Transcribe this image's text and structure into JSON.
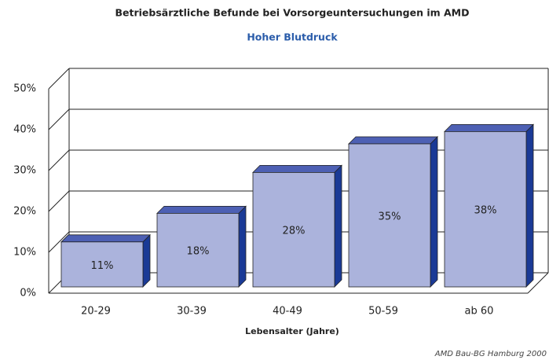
{
  "chart_data": {
    "type": "bar3d",
    "title": "Betriebsärztliche Befunde bei Vorsorgeuntersuchungen im AMD",
    "subtitle": "Hoher Blutdruck",
    "x_label": "Lebensalter (Jahre)",
    "source": "AMD Bau-BG Hamburg 2000",
    "categories": [
      "20-29",
      "30-39",
      "40-49",
      "50-59",
      "ab 60"
    ],
    "values": [
      11,
      18,
      28,
      35,
      38
    ],
    "value_labels": [
      "11%",
      "18%",
      "28%",
      "35%",
      "38%"
    ],
    "color": "#abb3dc",
    "top_color": "#4d60b4",
    "side_color": "#1a3a96",
    "ylim": [
      0,
      50
    ],
    "yticks": [
      {
        "value": 0,
        "label": "0%"
      },
      {
        "value": 10,
        "label": "10%"
      },
      {
        "value": 20,
        "label": "20%"
      },
      {
        "value": 30,
        "label": "30%"
      },
      {
        "value": 40,
        "label": "40%"
      },
      {
        "value": 50,
        "label": "50%"
      }
    ],
    "grid": true
  }
}
